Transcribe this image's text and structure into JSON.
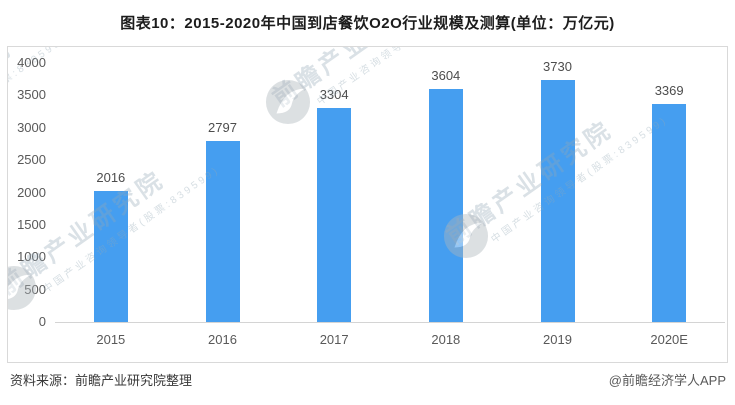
{
  "title": "图表10：2015-2020年中国到店餐饮O2O行业规模及测算(单位：万亿元)",
  "footer": {
    "source": "资料来源：前瞻产业研究院整理",
    "credit": "@前瞻经济学人APP"
  },
  "watermark": {
    "text": "前瞻产业研究院",
    "subtext": "中国产业咨询领导者(股票:839599)"
  },
  "colors": {
    "bar": "#459ef0",
    "box_border": "#d9d9d9",
    "axis_line": "#d4d4d4",
    "value_label": "#4d4d4d",
    "tick_label": "#595959",
    "title_text": "#1c1c1c"
  },
  "chart_data": {
    "type": "bar",
    "title": "图表10：2015-2020年中国到店餐饮O2O行业规模及测算(单位：万亿元)",
    "categories": [
      "2015",
      "2016",
      "2017",
      "2018",
      "2019",
      "2020E"
    ],
    "values": [
      2016,
      2797,
      3304,
      3604,
      3730,
      3369
    ],
    "xlabel": "",
    "ylabel": "",
    "unit": "万亿元",
    "ylim": [
      0,
      4000
    ],
    "ytick_step": 500,
    "grid": false,
    "legend": false,
    "bar_color": "#459ef0"
  }
}
